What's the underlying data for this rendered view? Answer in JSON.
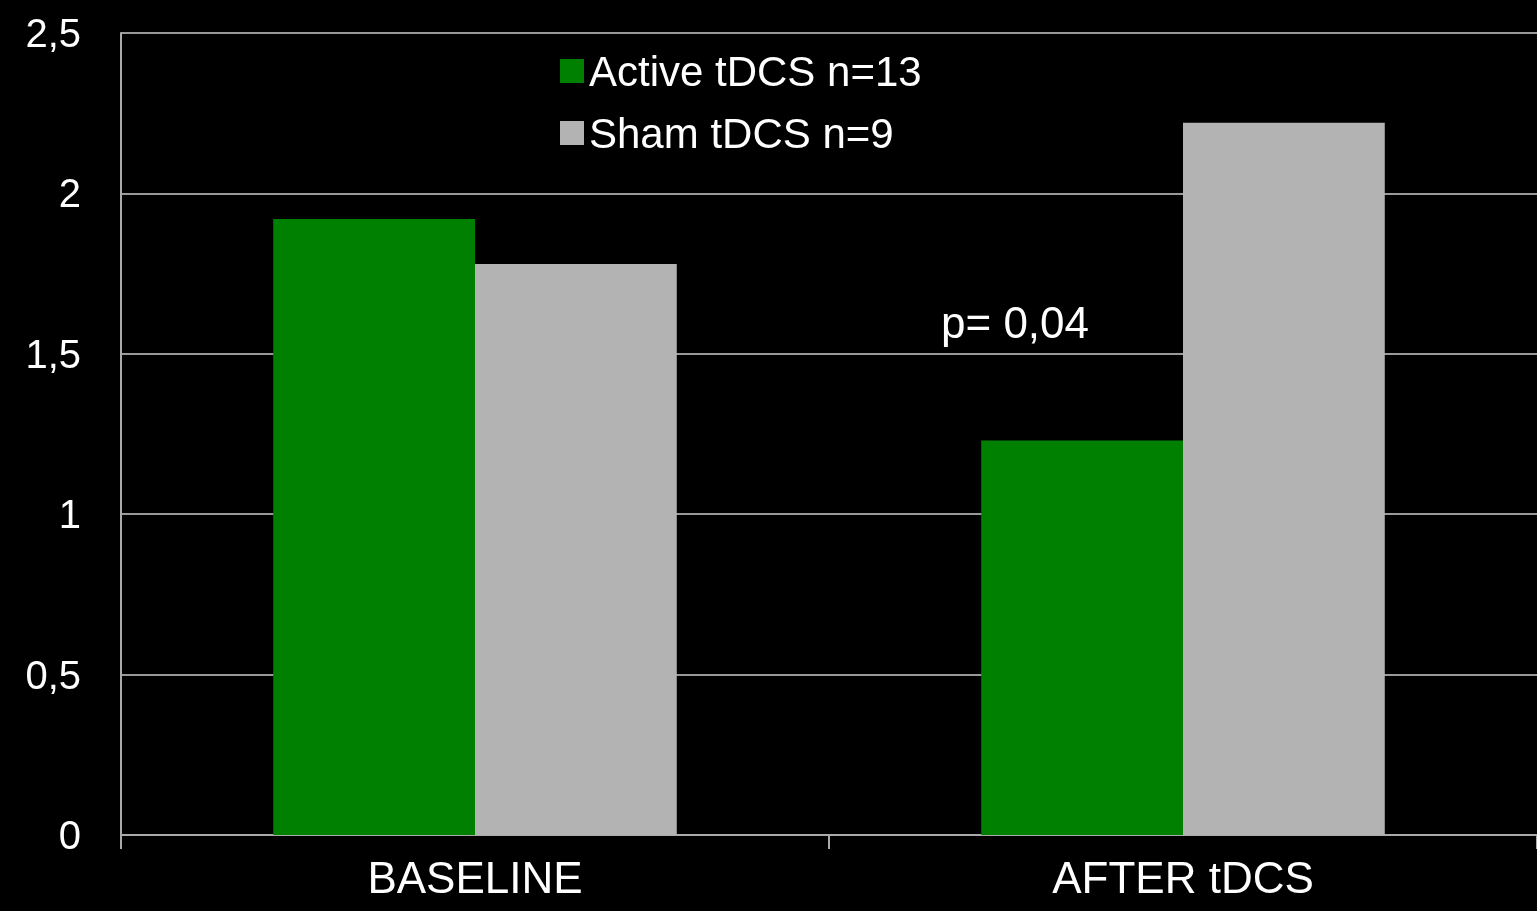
{
  "chart_data": {
    "type": "bar",
    "categories": [
      "BASELINE",
      "AFTER tDCS"
    ],
    "series": [
      {
        "name": "Active tDCS n=13",
        "color": "#008000",
        "values": [
          1.92,
          1.23
        ]
      },
      {
        "name": "Sham tDCS n=9",
        "color": "#b3b3b3",
        "values": [
          1.78,
          2.22
        ]
      }
    ],
    "ylim": [
      0,
      2.5
    ],
    "yticks": [
      0,
      {
        "value": 0.5,
        "label": "0,5"
      },
      1,
      {
        "value": 1.5,
        "label": "1,5"
      },
      2,
      {
        "value": 2.5,
        "label": "2,5"
      }
    ],
    "grid": "y",
    "legend": "top",
    "annotations": [
      "p= 0,04"
    ]
  }
}
